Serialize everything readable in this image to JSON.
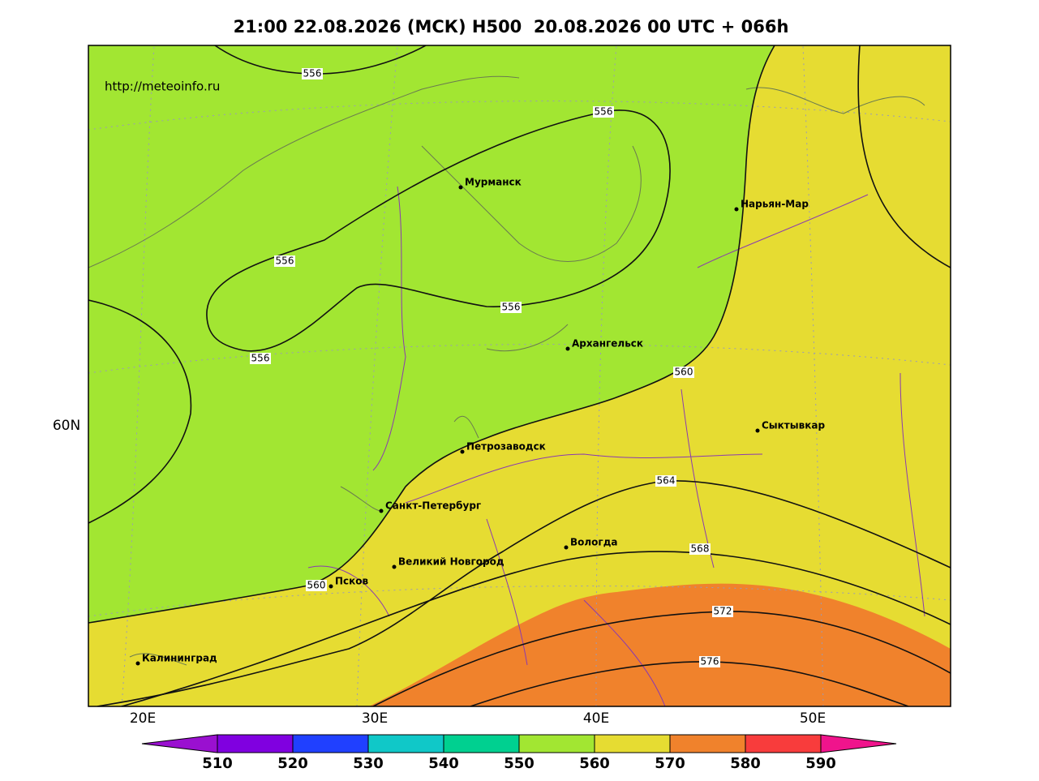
{
  "title": "21:00 22.08.2026 (МСК) H500  20.08.2026 00 UTC + 066h",
  "source": "http://meteoinfo.ru",
  "map": {
    "lon_labels": [
      "20E",
      "30E",
      "40E",
      "50E"
    ],
    "lat_labels": [
      "60N"
    ],
    "contour_labels": [
      556,
      556,
      556,
      556,
      556,
      560,
      560,
      564,
      568,
      572,
      576
    ],
    "cities": [
      "Мурманск",
      "Нарьян-Мар",
      "Архангельск",
      "Сыктывкар",
      "Петрозаводск",
      "Санкт-Петербург",
      "Вологда",
      "Великий Новгород",
      "Псков",
      "Калининград"
    ]
  },
  "legend": {
    "ticks": [
      510,
      520,
      530,
      540,
      550,
      560,
      570,
      580,
      590
    ],
    "colors": [
      "#9a10d0",
      "#8000e0",
      "#2040ff",
      "#10c8c8",
      "#00d090",
      "#a2e632",
      "#e6dc32",
      "#f0822c",
      "#f83c3c",
      "#f0148c"
    ]
  }
}
